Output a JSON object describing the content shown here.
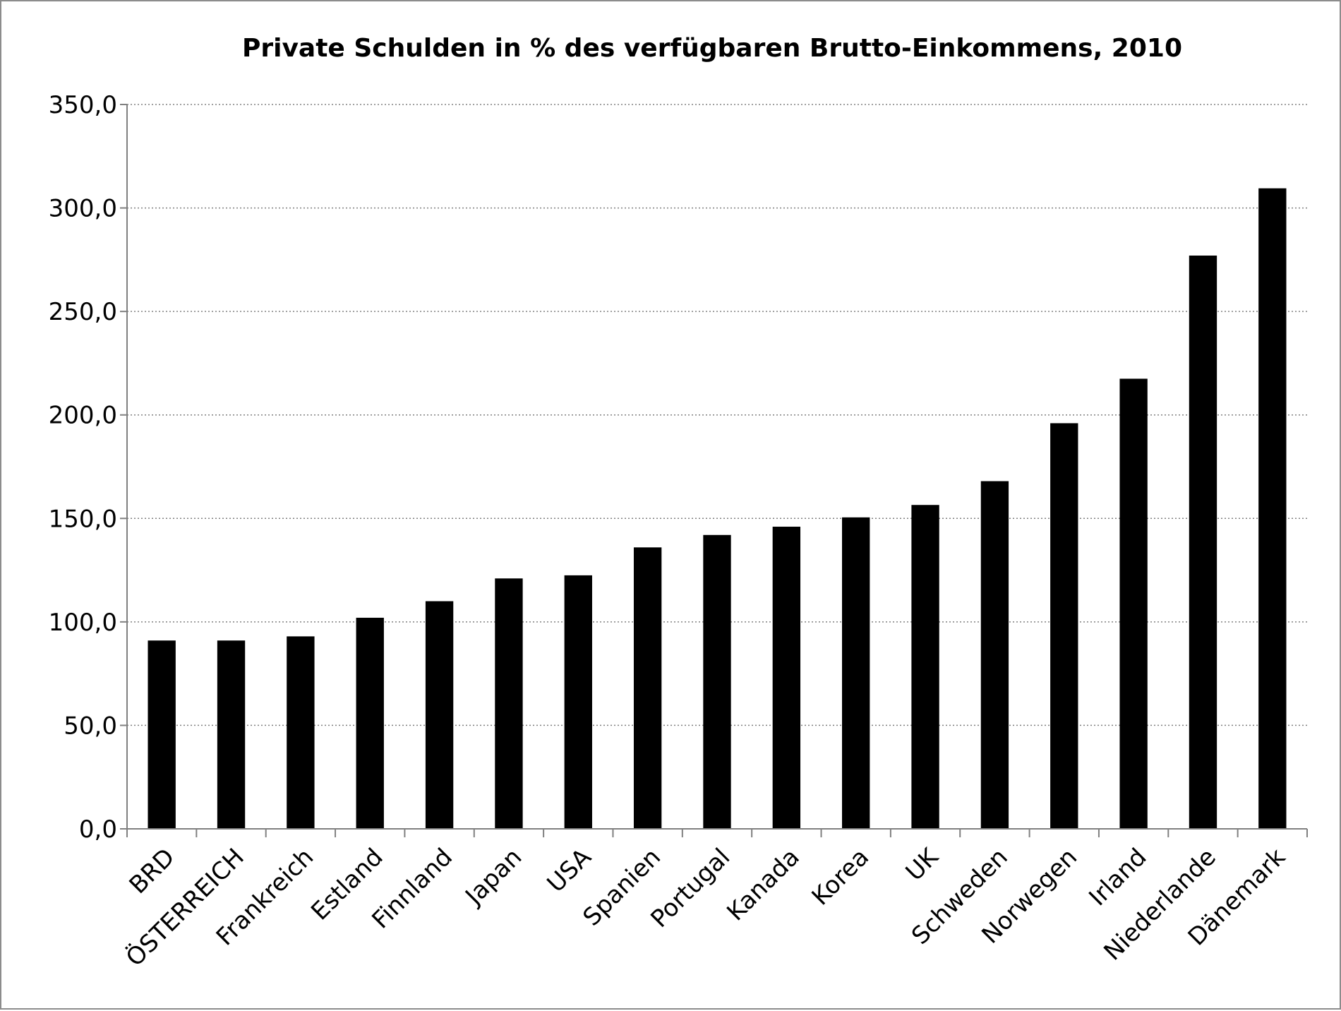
{
  "chart_data": {
    "type": "bar",
    "title": "Private Schulden in % des verfügbaren Brutto-Einkommens, 2010",
    "xlabel": "",
    "ylabel": "",
    "categories": [
      "BRD",
      "ÖSTERREICH",
      "Frankreich",
      "Estland",
      "Finnland",
      "Japan",
      "USA",
      "Spanien",
      "Portugal",
      "Kanada",
      "Korea",
      "UK",
      "Schweden",
      "Norwegen",
      "Irland",
      "Niederlande",
      "Dänemark"
    ],
    "values": [
      91,
      91,
      93,
      102,
      110,
      121,
      122.5,
      136,
      142,
      146,
      150.5,
      156.5,
      168,
      196,
      217.5,
      277,
      309.5
    ],
    "ylim": [
      0,
      350
    ],
    "yticks": [
      "0,0",
      "50,0",
      "100,0",
      "150,0",
      "200,0",
      "250,0",
      "300,0",
      "350,0"
    ],
    "grid": "horizontal dotted",
    "legend": "none",
    "bar_color": "#000000"
  }
}
